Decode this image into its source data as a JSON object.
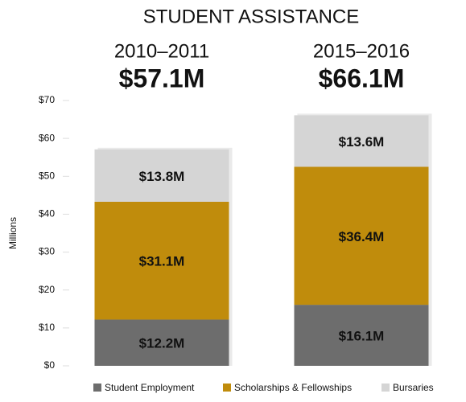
{
  "chart_data": {
    "type": "stacked_bar",
    "title": "STUDENT ASSISTANCE",
    "ylabel": "Millions",
    "categories": [
      "2010–2011",
      "2015–2016"
    ],
    "totals": {
      "values": [
        57.1,
        66.1
      ],
      "value_labels": [
        "$57.1M",
        "$66.1M"
      ]
    },
    "series": [
      {
        "name": "Student Employment",
        "color": "#6d6d6d",
        "values": [
          12.2,
          16.1
        ],
        "value_labels": [
          "$12.2M",
          "$16.1M"
        ]
      },
      {
        "name": "Scholarships & Fellowships",
        "color": "#c08c0c",
        "values": [
          31.1,
          36.4
        ],
        "value_labels": [
          "$31.1M",
          "$36.4M"
        ]
      },
      {
        "name": "Bursaries",
        "color": "#d5d5d5",
        "values": [
          13.8,
          13.6
        ],
        "value_labels": [
          "$13.8M",
          "$13.6M"
        ]
      }
    ],
    "ylim": [
      0,
      70
    ],
    "yticks": [
      {
        "value": 0,
        "label": "$0"
      },
      {
        "value": 10,
        "label": "$10"
      },
      {
        "value": 20,
        "label": "$20"
      },
      {
        "value": 30,
        "label": "$30"
      },
      {
        "value": 40,
        "label": "$40"
      },
      {
        "value": 50,
        "label": "$50"
      },
      {
        "value": 60,
        "label": "$60"
      },
      {
        "value": 70,
        "label": "$70"
      }
    ]
  }
}
